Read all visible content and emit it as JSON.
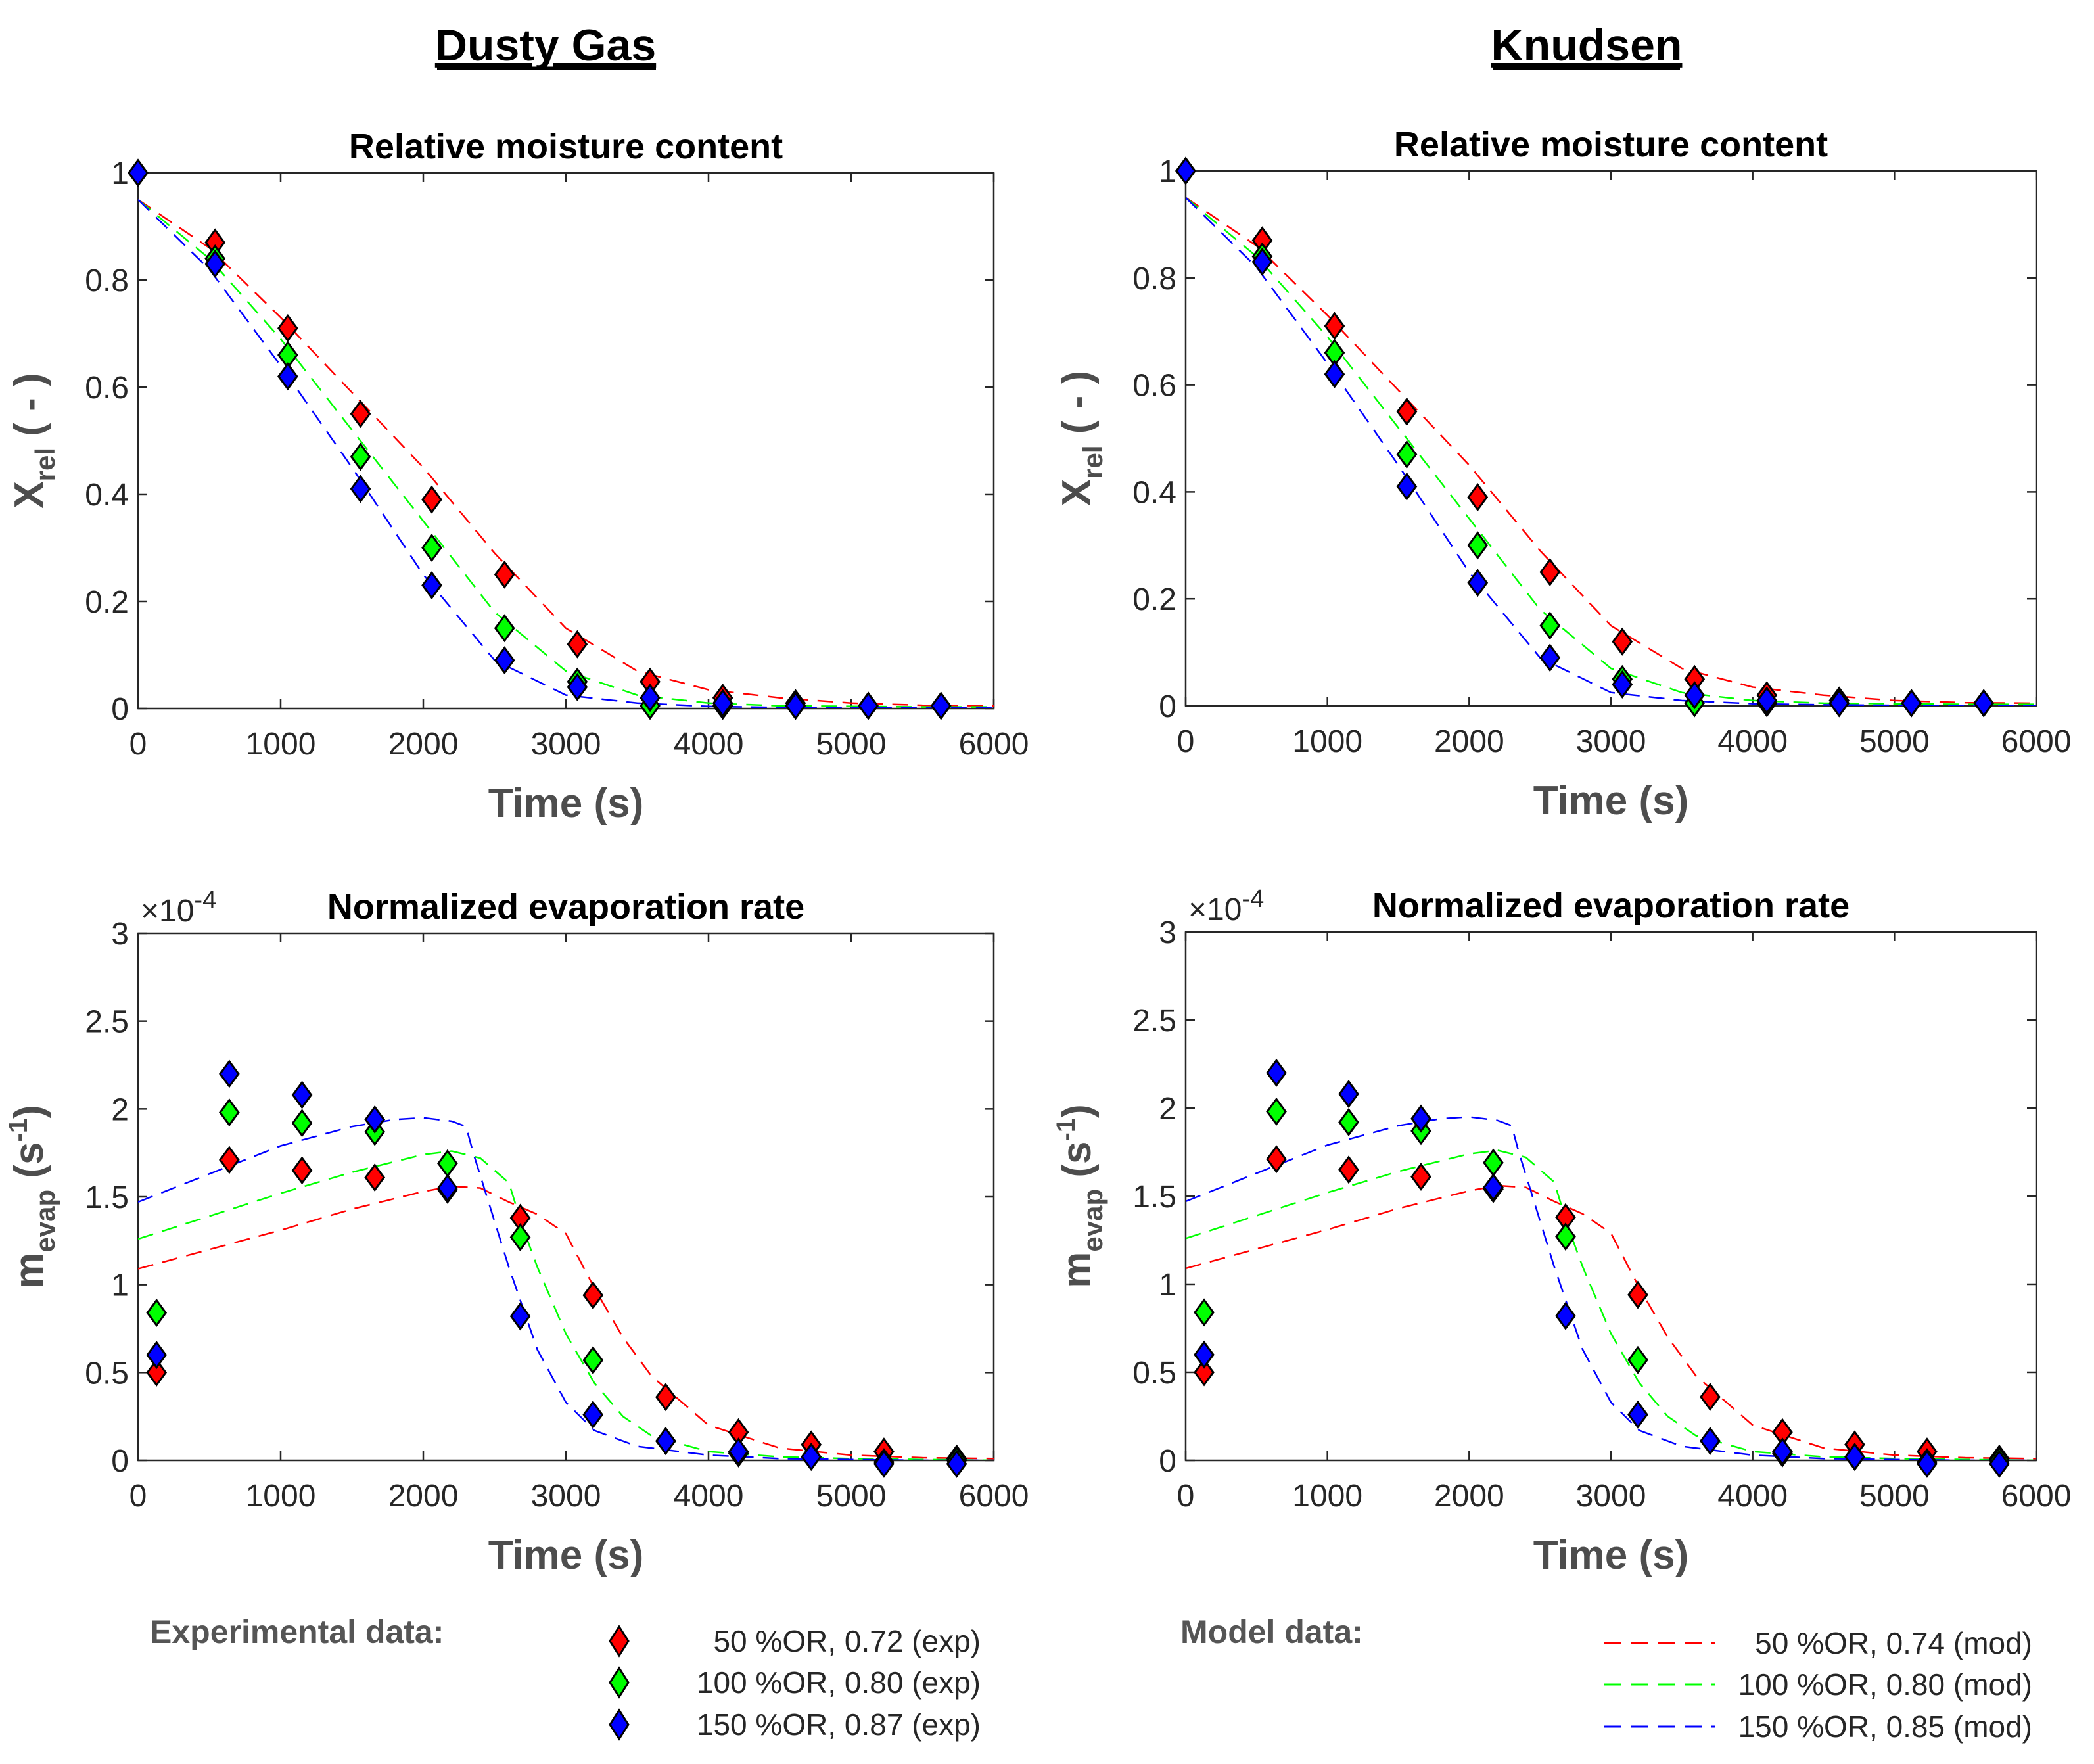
{
  "headers": {
    "left": "Dusty Gas",
    "right": "Knudsen"
  },
  "colors": {
    "50": "#ff0000",
    "100": "#00ff00",
    "150": "#0000ff"
  },
  "labels": {
    "time": "Time (s)",
    "xrel_main": "X",
    "xrel_sub": "rel",
    "xrel_unit": " ( - )",
    "mevap_main": "m",
    "mevap_sub": "evap",
    "mevap_unit": " (s",
    "mevap_sup": "-1",
    "mevap_close": ")",
    "exp_main": "×10",
    "exp_sup": "-4"
  },
  "legend": {
    "exp_heading": "Experimental data:",
    "model_heading": "Model data:",
    "exp_entries": [
      "50 %OR, 0.72 (exp)",
      "100 %OR, 0.80 (exp)",
      "150 %OR, 0.87 (exp)"
    ],
    "model_entries": [
      "50 %OR, 0.74 (mod)",
      "100 %OR, 0.80 (mod)",
      "150 %OR, 0.85 (mod)"
    ]
  },
  "chart_data": [
    {
      "type": "scatter+line",
      "title": "Relative moisture content",
      "column": "Dusty Gas",
      "xlabel": "Time (s)",
      "ylabel": "Xrel ( - )",
      "xlim": [
        0,
        6000
      ],
      "ylim": [
        0,
        1
      ],
      "xticks": [
        "0",
        "1000",
        "2000",
        "3000",
        "4000",
        "5000",
        "6000"
      ],
      "yticks": [
        "0",
        "0.2",
        "0.4",
        "0.6",
        "0.8",
        "1"
      ],
      "experimental": [
        {
          "name": "50 %OR, 0.72 (exp)",
          "x": [
            0,
            540,
            1050,
            1560,
            2060,
            2570,
            3080,
            3590,
            4100,
            4610,
            5120,
            5630
          ],
          "y": [
            1.0,
            0.87,
            0.71,
            0.55,
            0.39,
            0.25,
            0.12,
            0.05,
            0.02,
            0.01,
            0.005,
            0.005
          ]
        },
        {
          "name": "100 %OR, 0.80 (exp)",
          "x": [
            0,
            540,
            1050,
            1560,
            2060,
            2570,
            3080,
            3590,
            4100,
            4610,
            5120,
            5630
          ],
          "y": [
            1.0,
            0.84,
            0.66,
            0.47,
            0.3,
            0.15,
            0.05,
            0.005,
            0.005,
            0.005,
            0.005,
            0.005
          ]
        },
        {
          "name": "150 %OR, 0.87 (exp)",
          "x": [
            0,
            540,
            1050,
            1560,
            2060,
            2570,
            3080,
            3590,
            4100,
            4610,
            5120,
            5630
          ],
          "y": [
            1.0,
            0.83,
            0.62,
            0.41,
            0.23,
            0.09,
            0.04,
            0.02,
            0.01,
            0.005,
            0.005,
            0.005
          ]
        }
      ],
      "model": [
        {
          "name": "50 %OR, 0.74 (mod)",
          "x": [
            0,
            500,
            1000,
            1500,
            2000,
            2500,
            3000,
            3500,
            4000,
            4500,
            5000,
            5500,
            6000
          ],
          "y": [
            0.95,
            0.86,
            0.73,
            0.59,
            0.45,
            0.29,
            0.15,
            0.07,
            0.035,
            0.02,
            0.01,
            0.006,
            0.005
          ]
        },
        {
          "name": "100 %OR, 0.80 (mod)",
          "x": [
            0,
            500,
            1000,
            1500,
            2000,
            2500,
            3000,
            3500,
            4000,
            4500,
            5000,
            5500,
            6000
          ],
          "y": [
            0.95,
            0.84,
            0.69,
            0.52,
            0.35,
            0.18,
            0.07,
            0.025,
            0.01,
            0.005,
            0.004,
            0.003,
            0.003
          ]
        },
        {
          "name": "150 %OR, 0.85 (mod)",
          "x": [
            0,
            500,
            1000,
            1500,
            2000,
            2500,
            3000,
            3500,
            4000,
            4500,
            5000,
            5500,
            6000
          ],
          "y": [
            0.95,
            0.82,
            0.64,
            0.45,
            0.25,
            0.09,
            0.025,
            0.01,
            0.004,
            0.002,
            0.001,
            0.001,
            0.001
          ]
        }
      ]
    },
    {
      "type": "scatter+line",
      "title": "Relative moisture content",
      "column": "Knudsen",
      "xlabel": "Time (s)",
      "ylabel": "Xrel ( - )",
      "xlim": [
        0,
        6000
      ],
      "ylim": [
        0,
        1
      ],
      "xticks": [
        "0",
        "1000",
        "2000",
        "3000",
        "4000",
        "5000",
        "6000"
      ],
      "yticks": [
        "0",
        "0.2",
        "0.4",
        "0.6",
        "0.8",
        "1"
      ],
      "experimental": [
        {
          "name": "50 %OR, 0.72 (exp)",
          "x": [
            0,
            540,
            1050,
            1560,
            2060,
            2570,
            3080,
            3590,
            4100,
            4610,
            5120,
            5630
          ],
          "y": [
            1.0,
            0.87,
            0.71,
            0.55,
            0.39,
            0.25,
            0.12,
            0.05,
            0.02,
            0.01,
            0.005,
            0.005
          ]
        },
        {
          "name": "100 %OR, 0.80 (exp)",
          "x": [
            0,
            540,
            1050,
            1560,
            2060,
            2570,
            3080,
            3590,
            4100,
            4610,
            5120,
            5630
          ],
          "y": [
            1.0,
            0.84,
            0.66,
            0.47,
            0.3,
            0.15,
            0.05,
            0.005,
            0.005,
            0.005,
            0.005,
            0.005
          ]
        },
        {
          "name": "150 %OR, 0.87 (exp)",
          "x": [
            0,
            540,
            1050,
            1560,
            2060,
            2570,
            3080,
            3590,
            4100,
            4610,
            5120,
            5630
          ],
          "y": [
            1.0,
            0.83,
            0.62,
            0.41,
            0.23,
            0.09,
            0.04,
            0.02,
            0.01,
            0.005,
            0.005,
            0.005
          ]
        }
      ],
      "model": [
        {
          "name": "50 %OR, 0.74 (mod)",
          "x": [
            0,
            500,
            1000,
            1500,
            2000,
            2500,
            3000,
            3500,
            4000,
            4500,
            5000,
            5500,
            6000
          ],
          "y": [
            0.95,
            0.86,
            0.73,
            0.59,
            0.45,
            0.29,
            0.15,
            0.07,
            0.035,
            0.02,
            0.01,
            0.006,
            0.005
          ]
        },
        {
          "name": "100 %OR, 0.80 (mod)",
          "x": [
            0,
            500,
            1000,
            1500,
            2000,
            2500,
            3000,
            3500,
            4000,
            4500,
            5000,
            5500,
            6000
          ],
          "y": [
            0.95,
            0.84,
            0.69,
            0.52,
            0.35,
            0.18,
            0.07,
            0.025,
            0.01,
            0.005,
            0.004,
            0.003,
            0.003
          ]
        },
        {
          "name": "150 %OR, 0.85 (mod)",
          "x": [
            0,
            500,
            1000,
            1500,
            2000,
            2500,
            3000,
            3500,
            4000,
            4500,
            5000,
            5500,
            6000
          ],
          "y": [
            0.95,
            0.82,
            0.64,
            0.45,
            0.25,
            0.09,
            0.025,
            0.01,
            0.004,
            0.002,
            0.001,
            0.001,
            0.001
          ]
        }
      ]
    },
    {
      "type": "scatter+line",
      "title": "Normalized evaporation rate",
      "column": "Dusty Gas",
      "xlabel": "Time (s)",
      "ylabel": "mevap (s-1)",
      "y_multiplier": "×10-4",
      "xlim": [
        0,
        6000
      ],
      "ylim": [
        0,
        3
      ],
      "xticks": [
        "0",
        "1000",
        "2000",
        "3000",
        "4000",
        "5000",
        "6000"
      ],
      "yticks": [
        "0",
        "0.5",
        "1",
        "1.5",
        "2",
        "2.5",
        "3"
      ],
      "experimental": [
        {
          "name": "50 %OR, 0.72 (exp)",
          "x": [
            130,
            640,
            1150,
            1660,
            2170,
            2680,
            3190,
            3700,
            4210,
            4720,
            5230,
            5740
          ],
          "y": [
            0.5,
            1.71,
            1.65,
            1.61,
            1.54,
            1.38,
            0.94,
            0.36,
            0.16,
            0.09,
            0.05,
            0.01
          ]
        },
        {
          "name": "100 %OR, 0.80 (exp)",
          "x": [
            130,
            640,
            1150,
            1660,
            2170,
            2680,
            3190,
            3700,
            4210,
            4720,
            5230,
            5740
          ],
          "y": [
            0.84,
            1.98,
            1.92,
            1.87,
            1.69,
            1.27,
            0.57,
            0.11,
            0.04,
            0.02,
            -0.01,
            0.0
          ]
        },
        {
          "name": "150 %OR, 0.87 (exp)",
          "x": [
            130,
            640,
            1150,
            1660,
            2170,
            2680,
            3190,
            3700,
            4210,
            4720,
            5230,
            5740
          ],
          "y": [
            0.6,
            2.2,
            2.08,
            1.94,
            1.55,
            0.82,
            0.26,
            0.11,
            0.05,
            0.02,
            -0.02,
            -0.02
          ]
        }
      ],
      "model": [
        {
          "name": "50 %OR, 0.74 (mod)",
          "x": [
            0,
            500,
            1000,
            1500,
            2000,
            2200,
            2400,
            2600,
            2800,
            3000,
            3200,
            3400,
            3600,
            4000,
            4500,
            5000,
            5500,
            6000
          ],
          "y": [
            1.09,
            1.2,
            1.31,
            1.43,
            1.53,
            1.56,
            1.55,
            1.47,
            1.4,
            1.29,
            0.98,
            0.7,
            0.48,
            0.2,
            0.07,
            0.03,
            0.015,
            0.01
          ]
        },
        {
          "name": "100 %OR, 0.80 (mod)",
          "x": [
            0,
            500,
            1000,
            1500,
            2000,
            2200,
            2400,
            2600,
            2700,
            2800,
            3000,
            3200,
            3400,
            3600,
            4000,
            4500,
            5000,
            5500,
            6000
          ],
          "y": [
            1.26,
            1.39,
            1.52,
            1.64,
            1.74,
            1.76,
            1.72,
            1.58,
            1.32,
            1.1,
            0.72,
            0.44,
            0.25,
            0.14,
            0.05,
            0.02,
            0.01,
            0.005,
            0.0
          ]
        },
        {
          "name": "150 %OR, 0.85 (mod)",
          "x": [
            0,
            500,
            1000,
            1500,
            1800,
            2000,
            2200,
            2300,
            2350,
            2400,
            2600,
            2800,
            3000,
            3200,
            3500,
            4000,
            4500,
            5000,
            5500,
            6000
          ],
          "y": [
            1.47,
            1.63,
            1.79,
            1.9,
            1.94,
            1.95,
            1.93,
            1.9,
            1.75,
            1.62,
            1.1,
            0.63,
            0.33,
            0.17,
            0.08,
            0.03,
            0.01,
            0.005,
            0.0,
            0.0
          ]
        }
      ]
    },
    {
      "type": "scatter+line",
      "title": "Normalized evaporation rate",
      "column": "Knudsen",
      "xlabel": "Time (s)",
      "ylabel": "mevap (s-1)",
      "y_multiplier": "×10-4",
      "xlim": [
        0,
        6000
      ],
      "ylim": [
        0,
        3
      ],
      "xticks": [
        "0",
        "1000",
        "2000",
        "3000",
        "4000",
        "5000",
        "6000"
      ],
      "yticks": [
        "0",
        "0.5",
        "1",
        "1.5",
        "2",
        "2.5",
        "3"
      ],
      "experimental": [
        {
          "name": "50 %OR, 0.72 (exp)",
          "x": [
            130,
            640,
            1150,
            1660,
            2170,
            2680,
            3190,
            3700,
            4210,
            4720,
            5230,
            5740
          ],
          "y": [
            0.5,
            1.71,
            1.65,
            1.61,
            1.54,
            1.38,
            0.94,
            0.36,
            0.16,
            0.09,
            0.05,
            0.01
          ]
        },
        {
          "name": "100 %OR, 0.80 (exp)",
          "x": [
            130,
            640,
            1150,
            1660,
            2170,
            2680,
            3190,
            3700,
            4210,
            4720,
            5230,
            5740
          ],
          "y": [
            0.84,
            1.98,
            1.92,
            1.87,
            1.69,
            1.27,
            0.57,
            0.11,
            0.04,
            0.02,
            -0.01,
            0.0
          ]
        },
        {
          "name": "150 %OR, 0.87 (exp)",
          "x": [
            130,
            640,
            1150,
            1660,
            2170,
            2680,
            3190,
            3700,
            4210,
            4720,
            5230,
            5740
          ],
          "y": [
            0.6,
            2.2,
            2.08,
            1.94,
            1.55,
            0.82,
            0.26,
            0.11,
            0.05,
            0.02,
            -0.02,
            -0.02
          ]
        }
      ],
      "model": [
        {
          "name": "50 %OR, 0.74 (mod)",
          "x": [
            0,
            500,
            1000,
            1500,
            2000,
            2200,
            2400,
            2600,
            2800,
            3000,
            3200,
            3400,
            3600,
            4000,
            4500,
            5000,
            5500,
            6000
          ],
          "y": [
            1.09,
            1.2,
            1.31,
            1.43,
            1.53,
            1.56,
            1.55,
            1.47,
            1.4,
            1.29,
            0.98,
            0.7,
            0.48,
            0.2,
            0.07,
            0.03,
            0.015,
            0.01
          ]
        },
        {
          "name": "100 %OR, 0.80 (mod)",
          "x": [
            0,
            500,
            1000,
            1500,
            2000,
            2200,
            2400,
            2600,
            2700,
            2800,
            3000,
            3200,
            3400,
            3600,
            4000,
            4500,
            5000,
            5500,
            6000
          ],
          "y": [
            1.26,
            1.39,
            1.52,
            1.64,
            1.74,
            1.76,
            1.72,
            1.58,
            1.32,
            1.1,
            0.72,
            0.44,
            0.25,
            0.14,
            0.05,
            0.02,
            0.01,
            0.005,
            0.0
          ]
        },
        {
          "name": "150 %OR, 0.85 (mod)",
          "x": [
            0,
            500,
            1000,
            1500,
            1800,
            2000,
            2200,
            2300,
            2350,
            2400,
            2600,
            2800,
            3000,
            3200,
            3500,
            4000,
            4500,
            5000,
            5500,
            6000
          ],
          "y": [
            1.47,
            1.63,
            1.79,
            1.9,
            1.94,
            1.95,
            1.93,
            1.9,
            1.75,
            1.62,
            1.1,
            0.63,
            0.33,
            0.17,
            0.08,
            0.03,
            0.01,
            0.005,
            0.0,
            0.0
          ]
        }
      ]
    }
  ]
}
